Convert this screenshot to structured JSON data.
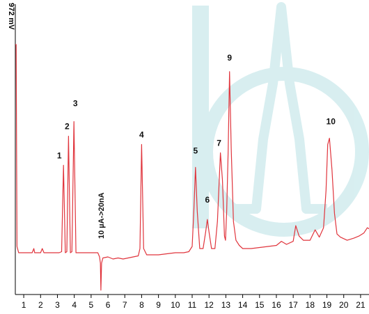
{
  "chart_data": {
    "type": "line",
    "title": "",
    "ylabel": "972 mV",
    "xlabel": "",
    "xlim": [
      0.5,
      21.5
    ],
    "x_ticks": [
      "1",
      "2",
      "3",
      "4",
      "5",
      "6",
      "7",
      "8",
      "9",
      "10",
      "11",
      "12",
      "13",
      "14",
      "15",
      "16",
      "17",
      "18",
      "19",
      "20",
      "21"
    ],
    "grid": false,
    "legend": "none",
    "line_color": "#e0343c",
    "axis_color": "#000000",
    "watermark_color": "#d6eef0",
    "series": [
      {
        "points": [
          [
            0.5,
            1.0
          ],
          [
            0.55,
            1.0
          ],
          [
            0.6,
            0.03
          ],
          [
            0.7,
            0.0
          ],
          [
            1.0,
            0.0
          ],
          [
            1.5,
            0.0
          ],
          [
            1.6,
            0.02
          ],
          [
            1.65,
            0.0
          ],
          [
            2.0,
            0.0
          ],
          [
            2.1,
            0.02
          ],
          [
            2.2,
            0.0
          ],
          [
            2.8,
            0.0
          ],
          [
            3.1,
            0.0
          ],
          [
            3.25,
            0.005
          ],
          [
            3.36,
            0.42
          ],
          [
            3.47,
            0.0
          ],
          [
            3.56,
            0.005
          ],
          [
            3.66,
            0.56
          ],
          [
            3.77,
            0.0
          ],
          [
            3.86,
            0.005
          ],
          [
            3.98,
            0.63
          ],
          [
            4.1,
            0.0
          ],
          [
            4.3,
            0.0
          ],
          [
            5.0,
            0.0
          ],
          [
            5.4,
            0.0
          ],
          [
            5.5,
            -0.02
          ],
          [
            5.55,
            -0.05
          ],
          [
            5.58,
            -0.18
          ],
          [
            5.62,
            -0.05
          ],
          [
            5.7,
            -0.025
          ],
          [
            6.0,
            -0.02
          ],
          [
            6.3,
            -0.03
          ],
          [
            6.6,
            -0.025
          ],
          [
            6.9,
            -0.03
          ],
          [
            7.2,
            -0.025
          ],
          [
            7.5,
            -0.02
          ],
          [
            7.8,
            -0.015
          ],
          [
            7.9,
            0.02
          ],
          [
            8.0,
            0.52
          ],
          [
            8.12,
            0.02
          ],
          [
            8.3,
            -0.01
          ],
          [
            8.7,
            -0.01
          ],
          [
            9.0,
            -0.01
          ],
          [
            9.5,
            -0.005
          ],
          [
            10.0,
            0.0
          ],
          [
            10.5,
            0.0
          ],
          [
            10.8,
            0.005
          ],
          [
            11.0,
            0.03
          ],
          [
            11.1,
            0.2
          ],
          [
            11.2,
            0.41
          ],
          [
            11.3,
            0.2
          ],
          [
            11.45,
            0.02
          ],
          [
            11.65,
            0.02
          ],
          [
            11.8,
            0.1
          ],
          [
            11.9,
            0.16
          ],
          [
            12.0,
            0.1
          ],
          [
            12.15,
            0.02
          ],
          [
            12.35,
            0.02
          ],
          [
            12.5,
            0.15
          ],
          [
            12.68,
            0.48
          ],
          [
            12.8,
            0.35
          ],
          [
            12.92,
            0.08
          ],
          [
            12.98,
            0.06
          ],
          [
            13.05,
            0.2
          ],
          [
            13.14,
            0.5
          ],
          [
            13.22,
            0.87
          ],
          [
            13.32,
            0.5
          ],
          [
            13.45,
            0.15
          ],
          [
            13.6,
            0.06
          ],
          [
            13.8,
            0.035
          ],
          [
            14.0,
            0.02
          ],
          [
            14.5,
            0.02
          ],
          [
            15.0,
            0.025
          ],
          [
            15.5,
            0.03
          ],
          [
            16.0,
            0.035
          ],
          [
            16.3,
            0.055
          ],
          [
            16.6,
            0.04
          ],
          [
            17.0,
            0.055
          ],
          [
            17.15,
            0.13
          ],
          [
            17.35,
            0.08
          ],
          [
            17.6,
            0.06
          ],
          [
            18.0,
            0.06
          ],
          [
            18.3,
            0.11
          ],
          [
            18.55,
            0.075
          ],
          [
            18.8,
            0.12
          ],
          [
            18.95,
            0.3
          ],
          [
            19.05,
            0.52
          ],
          [
            19.15,
            0.55
          ],
          [
            19.3,
            0.4
          ],
          [
            19.45,
            0.19
          ],
          [
            19.6,
            0.09
          ],
          [
            19.8,
            0.075
          ],
          [
            20.2,
            0.06
          ],
          [
            20.6,
            0.07
          ],
          [
            20.9,
            0.08
          ],
          [
            21.2,
            0.095
          ],
          [
            21.4,
            0.12
          ],
          [
            21.5,
            0.115
          ]
        ]
      }
    ],
    "annotations": [
      {
        "label": "1",
        "x": 3.36,
        "y": 0.42
      },
      {
        "label": "2",
        "x": 3.66,
        "y": 0.56
      },
      {
        "label": "3",
        "x": 3.98,
        "y": 0.63
      },
      {
        "label": "4",
        "x": 8.0,
        "y": 0.52
      },
      {
        "label": "5",
        "x": 11.2,
        "y": 0.41
      },
      {
        "label": "6",
        "x": 11.9,
        "y": 0.16
      },
      {
        "label": "7",
        "x": 12.68,
        "y": 0.48
      },
      {
        "label": "9",
        "x": 13.22,
        "y": 0.87
      },
      {
        "label": "10",
        "x": 19.15,
        "y": 0.55
      }
    ],
    "vertical_note": {
      "text": "10 µA->20nA",
      "x": 5.58
    }
  }
}
